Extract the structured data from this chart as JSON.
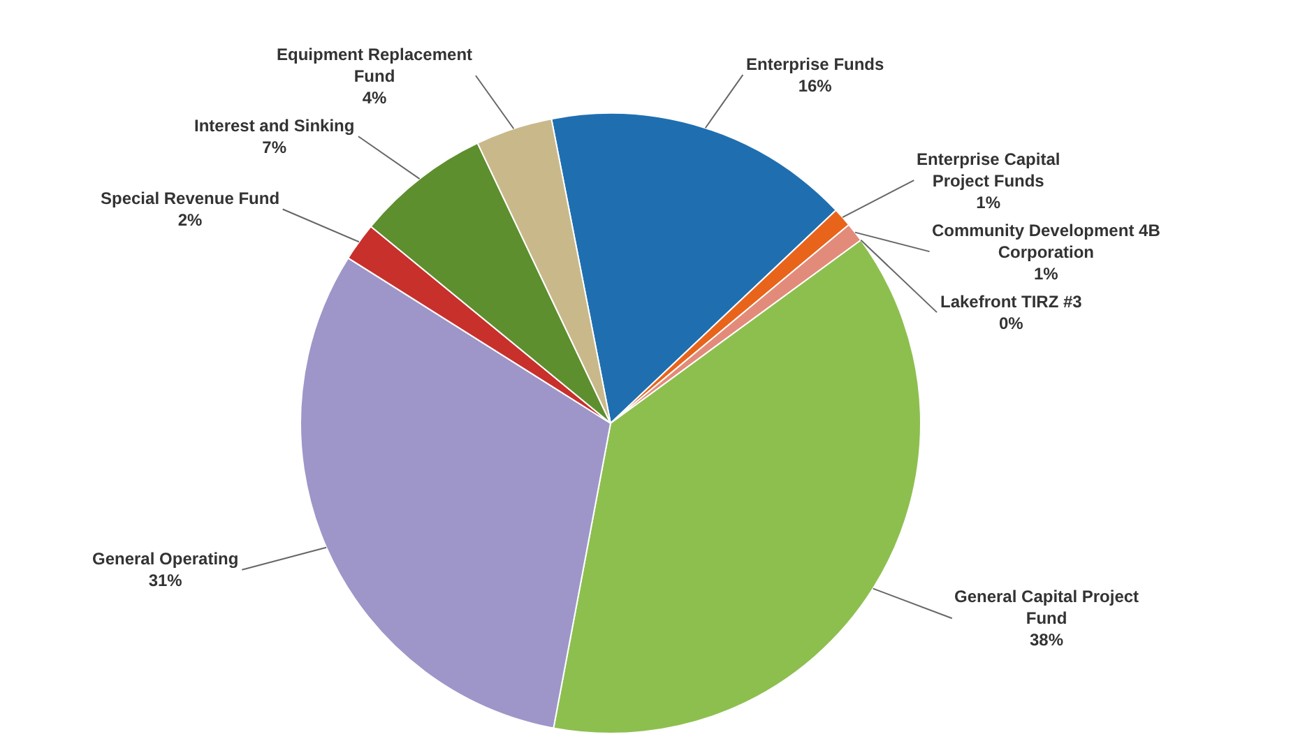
{
  "chart_data": {
    "type": "pie",
    "categories": [
      "Enterprise Funds",
      "Enterprise Capital Project Funds",
      "Community Development 4B Corporation",
      "Lakefront TIRZ #3",
      "General Capital Project Fund",
      "General Operating",
      "Special Revenue Fund",
      "Interest and Sinking",
      "Equipment Replacement Fund"
    ],
    "values": [
      16,
      1,
      1,
      0,
      38,
      31,
      2,
      7,
      4
    ],
    "value_labels": [
      "16%",
      "1%",
      "1%",
      "0%",
      "38%",
      "31%",
      "2%",
      "7%",
      "4%"
    ],
    "colors": [
      "#1f6fb0",
      "#e8641b",
      "#e38b7a",
      "#e9a08f",
      "#8dbf4f",
      "#9e96c8",
      "#c8302c",
      "#5d8f2e",
      "#c9b98a"
    ],
    "legend": false
  }
}
